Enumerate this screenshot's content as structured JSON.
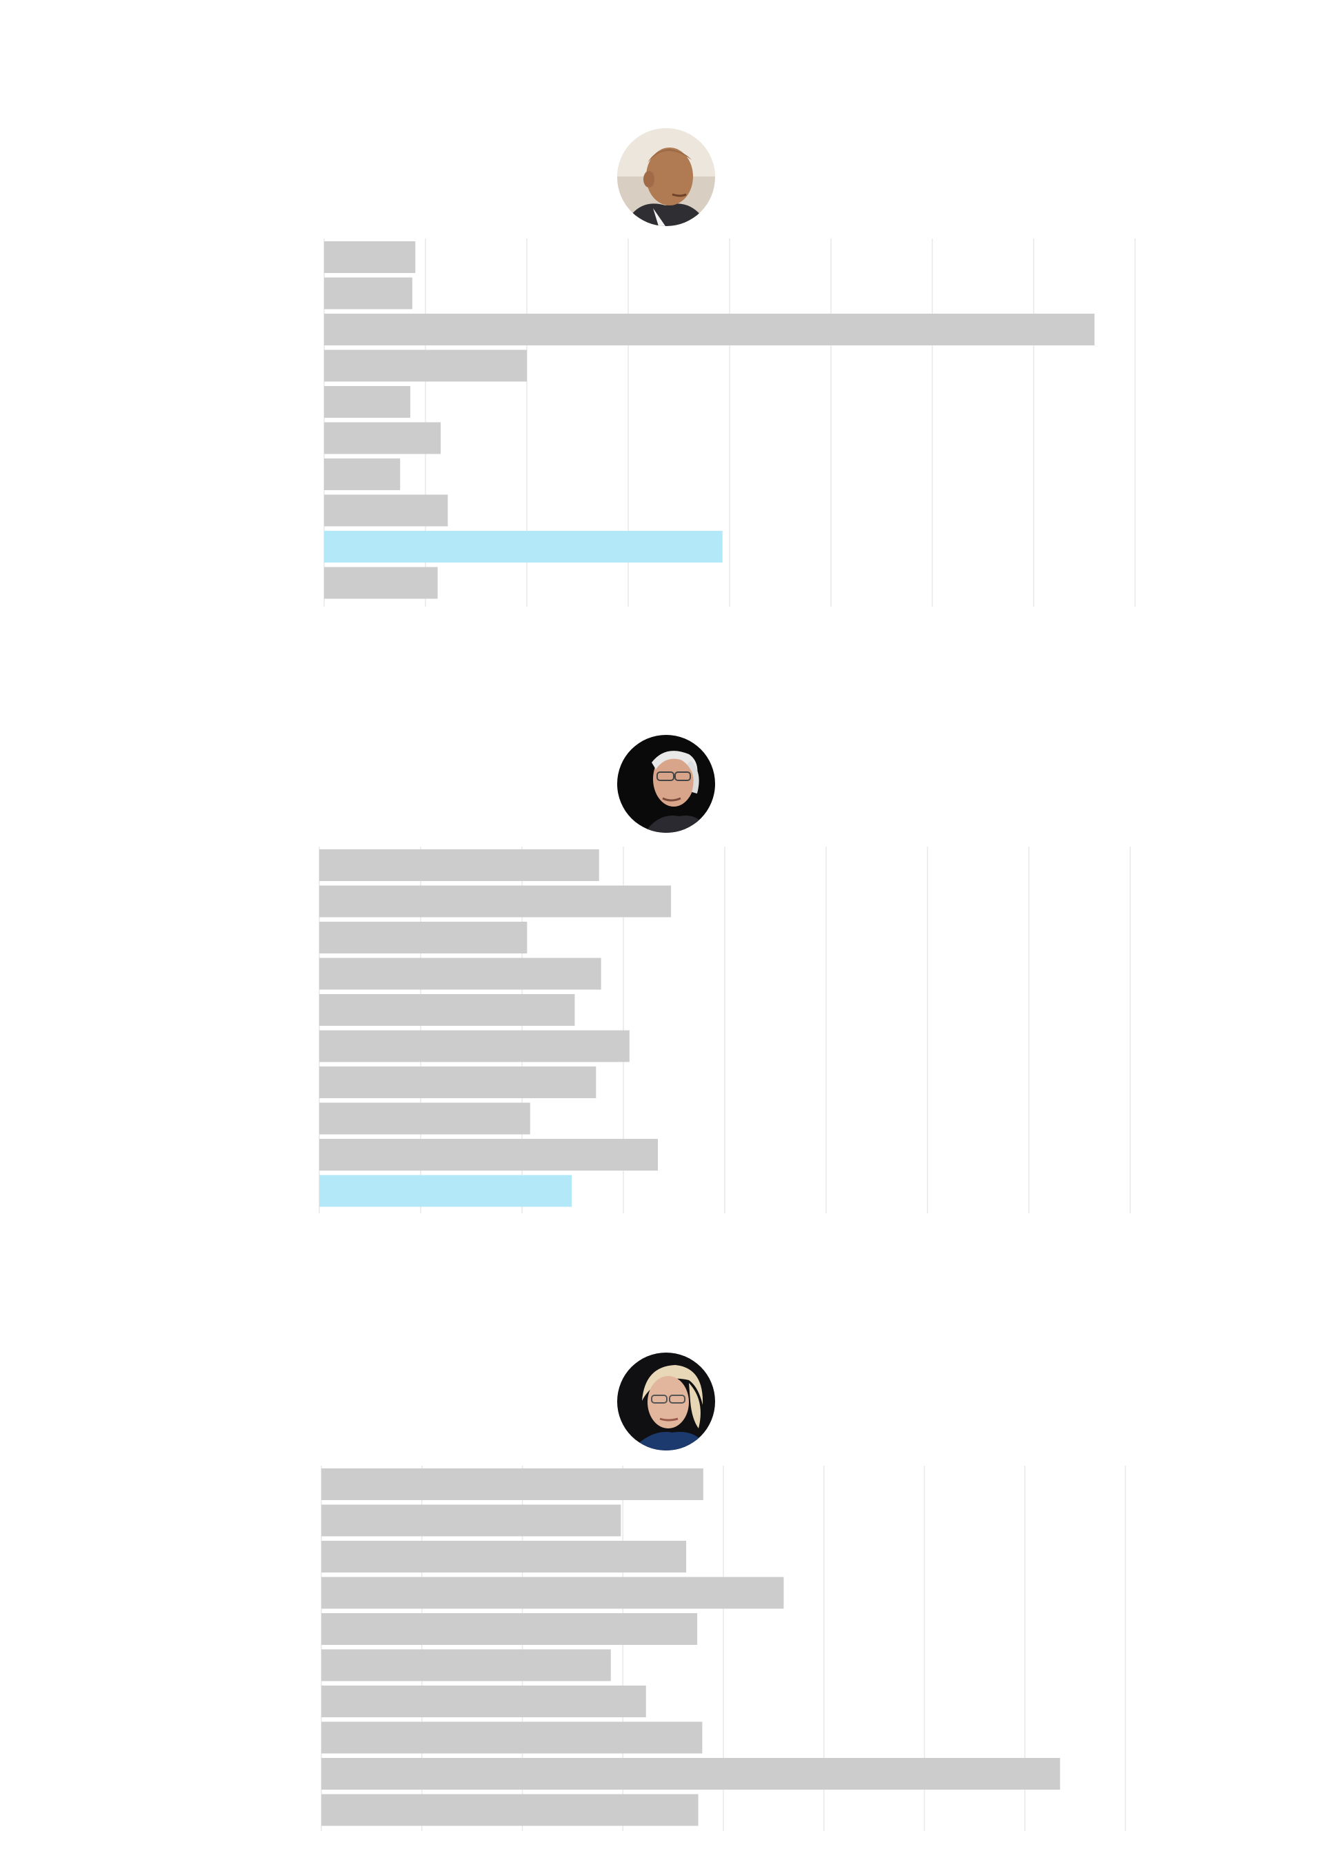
{
  "chart_data": [
    {
      "type": "bar",
      "orientation": "horizontal",
      "candidate_photo": "bald-man-in-suit-portrait",
      "xlim": [
        0,
        8
      ],
      "grid": true,
      "bar_color": "#cccccc",
      "highlight_color": "#b3e8f8",
      "values": [
        0.9,
        0.87,
        7.6,
        2.0,
        0.85,
        1.15,
        0.75,
        1.22,
        3.93,
        1.12
      ],
      "highlight_index": 8
    },
    {
      "type": "bar",
      "orientation": "horizontal",
      "candidate_photo": "white-haired-man-with-glasses-portrait",
      "xlim": [
        0,
        8
      ],
      "grid": true,
      "bar_color": "#cccccc",
      "highlight_color": "#b3e8f8",
      "values": [
        2.76,
        3.47,
        2.05,
        2.78,
        2.52,
        3.06,
        2.73,
        2.08,
        3.34,
        2.49
      ],
      "highlight_index": 9
    },
    {
      "type": "bar",
      "orientation": "horizontal",
      "candidate_photo": "woman-with-glasses-portrait",
      "xlim": [
        0,
        8
      ],
      "grid": true,
      "bar_color": "#cccccc",
      "highlight_color": "#b3e8f8",
      "values": [
        3.8,
        2.98,
        3.63,
        4.6,
        3.74,
        2.88,
        3.23,
        3.79,
        7.35,
        3.75
      ],
      "highlight_index": -1
    }
  ]
}
